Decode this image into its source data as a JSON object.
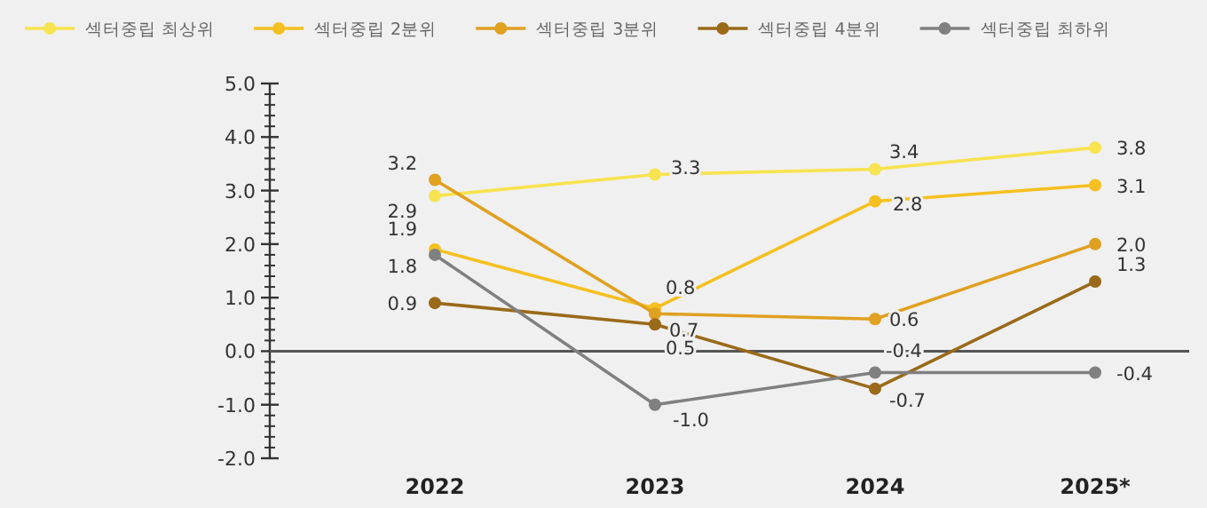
{
  "chart_data": {
    "type": "line",
    "categories": [
      "2022",
      "2023",
      "2024",
      "2025*"
    ],
    "series": [
      {
        "name": "섹터중립 최상위",
        "color": "#f7e34f",
        "values": [
          2.9,
          3.3,
          3.4,
          3.8
        ],
        "value_labels": [
          "2.9",
          "3.3",
          "3.4",
          "3.8"
        ]
      },
      {
        "name": "섹터중립 2분위",
        "color": "#f5c020",
        "values": [
          1.9,
          0.8,
          2.8,
          3.1
        ],
        "value_labels": [
          "1.9",
          "0.8",
          "2.8",
          "3.1"
        ]
      },
      {
        "name": "섹터중립 3분위",
        "color": "#e0a020",
        "values": [
          3.2,
          0.7,
          0.6,
          2.0
        ],
        "value_labels": [
          "3.2",
          "0.7",
          "0.6",
          "2.0"
        ]
      },
      {
        "name": "섹터중립 4분위",
        "color": "#9a6a1a",
        "values": [
          0.9,
          0.5,
          -0.7,
          1.3
        ],
        "value_labels": [
          "0.9",
          "0.5",
          "-0.7",
          "1.3"
        ]
      },
      {
        "name": "섹터중립 최하위",
        "color": "#808080",
        "values": [
          1.8,
          -1.0,
          -0.4,
          -0.4
        ],
        "value_labels": [
          "1.8",
          "-1.0",
          "-0.4",
          "-0.4"
        ]
      }
    ],
    "ylim": [
      -2,
      5
    ],
    "yticks": [
      {
        "value": -2,
        "label": "-2.0"
      },
      {
        "value": -1,
        "label": "-1.0"
      },
      {
        "value": 0,
        "label": "0.0"
      },
      {
        "value": 1,
        "label": "1.0"
      },
      {
        "value": 2,
        "label": "2.0"
      },
      {
        "value": 3,
        "label": "3.0"
      },
      {
        "value": 4,
        "label": "4.0"
      },
      {
        "value": 5,
        "label": "5.0"
      }
    ],
    "legend": "top left",
    "marker": "circle"
  }
}
